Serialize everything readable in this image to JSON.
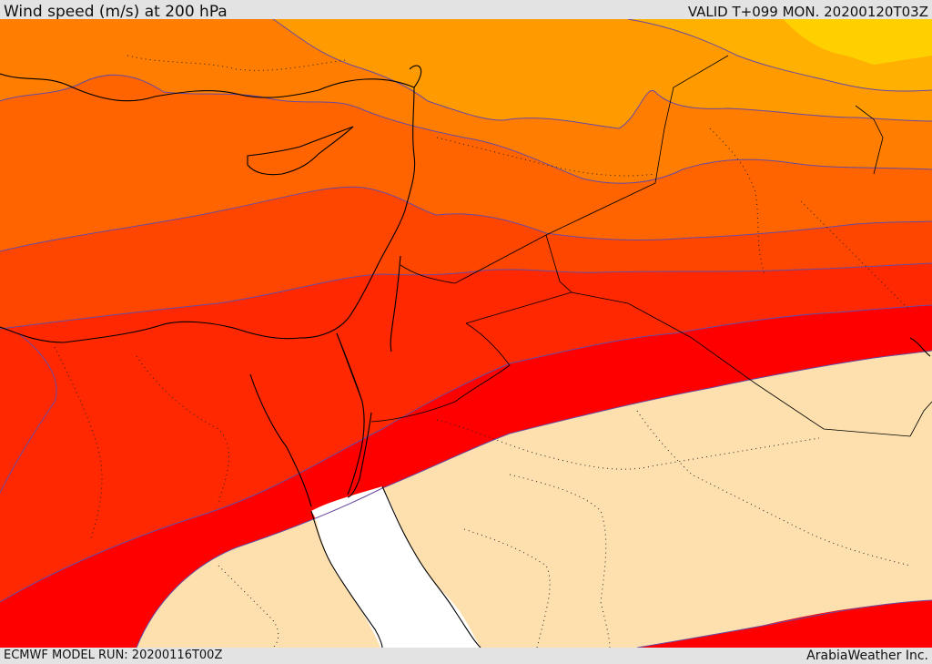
{
  "header": {
    "title": "Wind speed (m/s) at 200 hPa",
    "valid": "VALID T+099 MON. 20200120T03Z"
  },
  "footer": {
    "run": "ECMWF MODEL RUN: 20200116T00Z",
    "credit": "ArabiaWeather Inc."
  },
  "map": {
    "variable": "wind speed",
    "units": "m/s",
    "pressure_level_hpa": 200,
    "shading_colors": {
      "calm_band": "#fde0ae",
      "band_1": "#ffd000",
      "band_2": "#ffb000",
      "band_3": "#ff9a00",
      "band_4": "#ff7d00",
      "band_5": "#ff6400",
      "band_6": "#ff4600",
      "band_7": "#ff2800",
      "jet_core": "#ff0000",
      "sea_mask": "#ffffff",
      "contour_line": "#6a4aa0",
      "coastline": "#000000"
    }
  }
}
